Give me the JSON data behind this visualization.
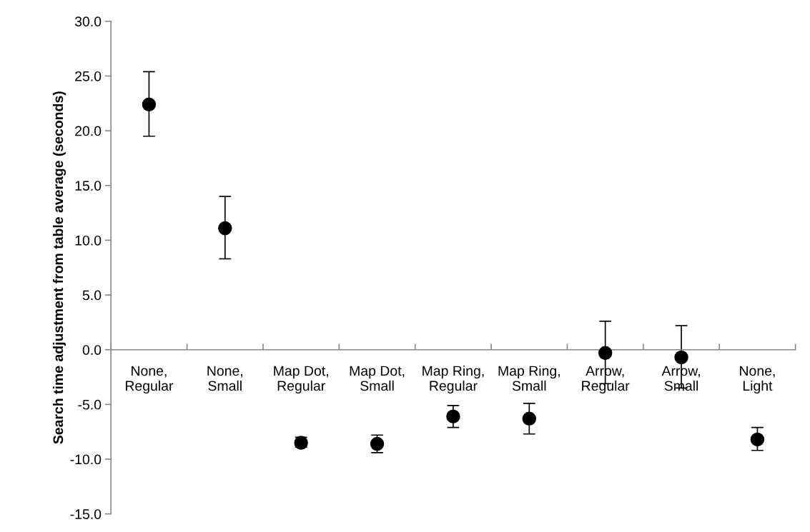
{
  "chart_data": {
    "type": "scatter",
    "ylabel": "Search time adjustment from table average (seconds)",
    "categories": [
      "None, Regular",
      "None, Small",
      "Map Dot, Regular",
      "Map Dot, Small",
      "Map Ring, Regular",
      "Map Ring, Small",
      "Arrow, Regular",
      "Arrow, Small",
      "None, Light"
    ],
    "values": [
      22.4,
      11.1,
      -8.5,
      -8.6,
      -6.1,
      -6.3,
      -0.3,
      -0.7,
      -8.2
    ],
    "errors": [
      [
        19.5,
        25.4
      ],
      [
        8.3,
        14.0
      ],
      [
        -8.9,
        -8.0
      ],
      [
        -9.4,
        -7.8
      ],
      [
        -7.1,
        -5.1
      ],
      [
        -7.7,
        -4.9
      ],
      [
        -3.1,
        2.6
      ],
      [
        -3.5,
        2.2
      ],
      [
        -9.2,
        -7.1
      ]
    ],
    "color": "#000000",
    "marker": "circle",
    "ylim": [
      -15,
      30
    ],
    "yticks": [
      {
        "value": -15,
        "label": "-15.0"
      },
      {
        "value": -10,
        "label": "-10.0"
      },
      {
        "value": -5,
        "label": "-5.0"
      },
      {
        "value": 0,
        "label": "0.0"
      },
      {
        "value": 5,
        "label": "5.0"
      },
      {
        "value": 10,
        "label": "10.0"
      },
      {
        "value": 15,
        "label": "15.0"
      },
      {
        "value": 20,
        "label": "20.0"
      },
      {
        "value": 25,
        "label": "25.0"
      },
      {
        "value": 30,
        "label": "30.0"
      }
    ]
  }
}
